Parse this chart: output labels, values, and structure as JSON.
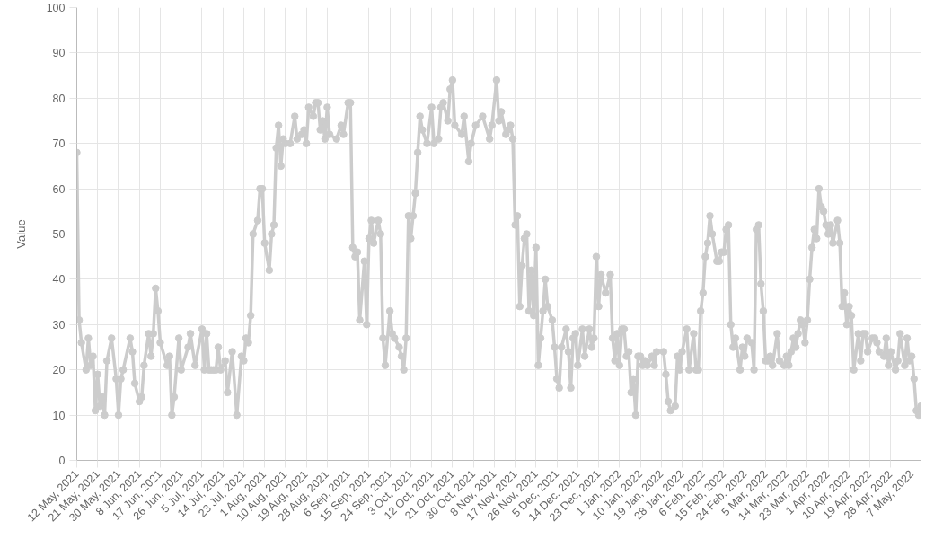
{
  "chart_data": {
    "type": "line",
    "ylabel": "Value",
    "x": [
      "2021-05-12",
      "2021-05-13",
      "2021-05-14",
      "2021-05-16",
      "2021-05-17",
      "2021-05-18",
      "2021-05-19",
      "2021-05-20",
      "2021-05-21",
      "2021-05-22",
      "2021-05-23",
      "2021-05-24",
      "2021-05-25",
      "2021-05-27",
      "2021-05-29",
      "2021-05-30",
      "2021-05-31",
      "2021-06-01",
      "2021-06-04",
      "2021-06-05",
      "2021-06-06",
      "2021-06-08",
      "2021-06-09",
      "2021-06-10",
      "2021-06-12",
      "2021-06-13",
      "2021-06-14",
      "2021-06-15",
      "2021-06-16",
      "2021-06-17",
      "2021-06-20",
      "2021-06-21",
      "2021-06-22",
      "2021-06-23",
      "2021-06-25",
      "2021-06-26",
      "2021-06-29",
      "2021-06-30",
      "2021-07-02",
      "2021-07-05",
      "2021-07-06",
      "2021-07-07",
      "2021-07-08",
      "2021-07-09",
      "2021-07-10",
      "2021-07-11",
      "2021-07-12",
      "2021-07-13",
      "2021-07-15",
      "2021-07-16",
      "2021-07-18",
      "2021-07-20",
      "2021-07-22",
      "2021-07-23",
      "2021-07-24",
      "2021-07-25",
      "2021-07-26",
      "2021-07-27",
      "2021-07-29",
      "2021-07-30",
      "2021-07-31",
      "2021-08-01",
      "2021-08-03",
      "2021-08-04",
      "2021-08-05",
      "2021-08-06",
      "2021-08-07",
      "2021-08-08",
      "2021-08-09",
      "2021-08-10",
      "2021-08-12",
      "2021-08-14",
      "2021-08-15",
      "2021-08-17",
      "2021-08-18",
      "2021-08-19",
      "2021-08-20",
      "2021-08-22",
      "2021-08-23",
      "2021-08-24",
      "2021-08-25",
      "2021-08-26",
      "2021-08-27",
      "2021-08-28",
      "2021-08-29",
      "2021-09-01",
      "2021-09-03",
      "2021-09-04",
      "2021-09-06",
      "2021-09-07",
      "2021-09-08",
      "2021-09-09",
      "2021-09-10",
      "2021-09-11",
      "2021-09-13",
      "2021-09-14",
      "2021-09-15",
      "2021-09-16",
      "2021-09-17",
      "2021-09-19",
      "2021-09-20",
      "2021-09-21",
      "2021-09-22",
      "2021-09-24",
      "2021-09-25",
      "2021-09-26",
      "2021-09-28",
      "2021-09-29",
      "2021-09-30",
      "2021-10-01",
      "2021-10-02",
      "2021-10-03",
      "2021-10-04",
      "2021-10-05",
      "2021-10-06",
      "2021-10-07",
      "2021-10-08",
      "2021-10-10",
      "2021-10-12",
      "2021-10-13",
      "2021-10-15",
      "2021-10-16",
      "2021-10-17",
      "2021-10-19",
      "2021-10-20",
      "2021-10-21",
      "2021-10-22",
      "2021-10-25",
      "2021-10-26",
      "2021-10-28",
      "2021-10-29",
      "2021-10-31",
      "2021-11-03",
      "2021-11-06",
      "2021-11-07",
      "2021-11-09",
      "2021-11-10",
      "2021-11-11",
      "2021-11-13",
      "2021-11-14",
      "2021-11-15",
      "2021-11-16",
      "2021-11-17",
      "2021-11-18",
      "2021-11-19",
      "2021-11-20",
      "2021-11-21",
      "2021-11-22",
      "2021-11-23",
      "2021-11-24",
      "2021-11-25",
      "2021-11-26",
      "2021-11-27",
      "2021-11-28",
      "2021-11-29",
      "2021-11-30",
      "2021-12-01",
      "2021-12-03",
      "2021-12-04",
      "2021-12-05",
      "2021-12-06",
      "2021-12-07",
      "2021-12-09",
      "2021-12-10",
      "2021-12-11",
      "2021-12-12",
      "2021-12-13",
      "2021-12-14",
      "2021-12-16",
      "2021-12-17",
      "2021-12-19",
      "2021-12-20",
      "2021-12-21",
      "2021-12-22",
      "2021-12-23",
      "2021-12-24",
      "2021-12-26",
      "2021-12-28",
      "2021-12-29",
      "2021-12-30",
      "2021-12-31",
      "2022-01-01",
      "2022-01-02",
      "2022-01-03",
      "2022-01-04",
      "2022-01-05",
      "2022-01-06",
      "2022-01-07",
      "2022-01-08",
      "2022-01-09",
      "2022-01-10",
      "2022-01-11",
      "2022-01-12",
      "2022-01-13",
      "2022-01-15",
      "2022-01-16",
      "2022-01-17",
      "2022-01-20",
      "2022-01-21",
      "2022-01-22",
      "2022-01-23",
      "2022-01-25",
      "2022-01-26",
      "2022-01-27",
      "2022-01-28",
      "2022-01-30",
      "2022-01-31",
      "2022-02-02",
      "2022-02-03",
      "2022-02-04",
      "2022-02-05",
      "2022-02-06",
      "2022-02-07",
      "2022-02-08",
      "2022-02-09",
      "2022-02-10",
      "2022-02-12",
      "2022-02-13",
      "2022-02-14",
      "2022-02-15",
      "2022-02-16",
      "2022-02-17",
      "2022-02-18",
      "2022-02-19",
      "2022-02-20",
      "2022-02-22",
      "2022-02-23",
      "2022-02-24",
      "2022-02-25",
      "2022-02-27",
      "2022-02-28",
      "2022-03-01",
      "2022-03-02",
      "2022-03-03",
      "2022-03-04",
      "2022-03-05",
      "2022-03-06",
      "2022-03-07",
      "2022-03-08",
      "2022-03-10",
      "2022-03-11",
      "2022-03-13",
      "2022-03-14",
      "2022-03-15",
      "2022-03-16",
      "2022-03-17",
      "2022-03-18",
      "2022-03-19",
      "2022-03-20",
      "2022-03-21",
      "2022-03-22",
      "2022-03-23",
      "2022-03-24",
      "2022-03-25",
      "2022-03-26",
      "2022-03-27",
      "2022-03-28",
      "2022-03-29",
      "2022-03-30",
      "2022-03-31",
      "2022-04-01",
      "2022-04-02",
      "2022-04-03",
      "2022-04-05",
      "2022-04-06",
      "2022-04-07",
      "2022-04-08",
      "2022-04-09",
      "2022-04-10",
      "2022-04-11",
      "2022-04-12",
      "2022-04-14",
      "2022-04-15",
      "2022-04-16",
      "2022-04-17",
      "2022-04-18",
      "2022-04-20",
      "2022-04-21",
      "2022-04-22",
      "2022-04-23",
      "2022-04-25",
      "2022-04-26",
      "2022-04-27",
      "2022-04-28",
      "2022-04-30",
      "2022-05-01",
      "2022-05-02",
      "2022-05-04",
      "2022-05-05",
      "2022-05-06",
      "2022-05-07",
      "2022-05-08",
      "2022-05-09",
      "2022-05-10",
      "2022-05-11"
    ],
    "series": [
      {
        "color": "#cccccc",
        "values": [
          68,
          31,
          26,
          20,
          27,
          21,
          23,
          11,
          19,
          12,
          14,
          10,
          22,
          27,
          18,
          10,
          18,
          20,
          27,
          24,
          17,
          13,
          14,
          21,
          28,
          23,
          28,
          38,
          33,
          26,
          21,
          23,
          10,
          14,
          27,
          20,
          25,
          28,
          21,
          29,
          20,
          28,
          20,
          20,
          20,
          20,
          25,
          20,
          22,
          15,
          24,
          10,
          23,
          22,
          27,
          26,
          32,
          50,
          53,
          60,
          60,
          48,
          42,
          50,
          52,
          69,
          74,
          65,
          71,
          70,
          70,
          76,
          71,
          72,
          73,
          70,
          78,
          76,
          79,
          79,
          73,
          75,
          71,
          78,
          72,
          71,
          74,
          72,
          79,
          79,
          47,
          45,
          46,
          31,
          44,
          30,
          49,
          53,
          48,
          53,
          50,
          27,
          21,
          33,
          28,
          27,
          25,
          23,
          20,
          27,
          54,
          49,
          54,
          59,
          68,
          76,
          73,
          70,
          78,
          70,
          71,
          78,
          79,
          75,
          82,
          84,
          74,
          72,
          76,
          66,
          70,
          74,
          76,
          71,
          74,
          84,
          75,
          77,
          72,
          73,
          74,
          71,
          52,
          54,
          34,
          43,
          49,
          50,
          33,
          42,
          32,
          47,
          21,
          27,
          33,
          40,
          34,
          31,
          25,
          18,
          16,
          25,
          29,
          24,
          16,
          27,
          28,
          21,
          29,
          23,
          29,
          25,
          27,
          45,
          34,
          41,
          37,
          41,
          27,
          22,
          28,
          21,
          29,
          29,
          23,
          24,
          15,
          18,
          10,
          23,
          23,
          21,
          22,
          21,
          23,
          21,
          24,
          24,
          19,
          13,
          11,
          12,
          23,
          20,
          24,
          29,
          20,
          28,
          20,
          20,
          33,
          37,
          45,
          48,
          54,
          50,
          44,
          44,
          46,
          46,
          51,
          52,
          30,
          25,
          27,
          20,
          25,
          23,
          27,
          26,
          20,
          51,
          52,
          39,
          33,
          22,
          22,
          23,
          21,
          28,
          22,
          21,
          23,
          21,
          24,
          27,
          25,
          28,
          31,
          30,
          26,
          31,
          40,
          47,
          51,
          49,
          60,
          56,
          55,
          52,
          50,
          52,
          48,
          53,
          48,
          34,
          37,
          30,
          34,
          32,
          20,
          28,
          22,
          28,
          28,
          24,
          27,
          27,
          26,
          24,
          23,
          27,
          21,
          24,
          20,
          22,
          28,
          21,
          27,
          22,
          23,
          18,
          11,
          10,
          12
        ]
      }
    ],
    "xlim": [
      "2021-05-12",
      "2022-05-11"
    ],
    "ylim": [
      0,
      100
    ],
    "xticks": [
      {
        "value": "2021-05-12",
        "label": "12 May, 2021"
      },
      {
        "value": "2021-05-21",
        "label": "21 May, 2021"
      },
      {
        "value": "2021-05-30",
        "label": "30 May, 2021"
      },
      {
        "value": "2021-06-08",
        "label": "8 Jun, 2021"
      },
      {
        "value": "2021-06-17",
        "label": "17 Jun, 2021"
      },
      {
        "value": "2021-06-26",
        "label": "26 Jun, 2021"
      },
      {
        "value": "2021-07-05",
        "label": "5 Jul, 2021"
      },
      {
        "value": "2021-07-14",
        "label": "14 Jul, 2021"
      },
      {
        "value": "2021-07-23",
        "label": "23 Jul, 2021"
      },
      {
        "value": "2021-08-01",
        "label": "1 Aug, 2021"
      },
      {
        "value": "2021-08-10",
        "label": "10 Aug, 2021"
      },
      {
        "value": "2021-08-19",
        "label": "19 Aug, 2021"
      },
      {
        "value": "2021-08-28",
        "label": "28 Aug, 2021"
      },
      {
        "value": "2021-09-06",
        "label": "6 Sep, 2021"
      },
      {
        "value": "2021-09-15",
        "label": "15 Sep, 2021"
      },
      {
        "value": "2021-09-24",
        "label": "24 Sep, 2021"
      },
      {
        "value": "2021-10-03",
        "label": "3 Oct, 2021"
      },
      {
        "value": "2021-10-12",
        "label": "12 Oct, 2021"
      },
      {
        "value": "2021-10-21",
        "label": "21 Oct, 2021"
      },
      {
        "value": "2021-10-30",
        "label": "30 Oct, 2021"
      },
      {
        "value": "2021-11-08",
        "label": "8 Nov, 2021"
      },
      {
        "value": "2021-11-17",
        "label": "17 Nov, 2021"
      },
      {
        "value": "2021-11-26",
        "label": "26 Nov, 2021"
      },
      {
        "value": "2021-12-05",
        "label": "5 Dec, 2021"
      },
      {
        "value": "2021-12-14",
        "label": "14 Dec, 2021"
      },
      {
        "value": "2021-12-23",
        "label": "23 Dec, 2021"
      },
      {
        "value": "2022-01-01",
        "label": "1 Jan, 2022"
      },
      {
        "value": "2022-01-10",
        "label": "10 Jan, 2022"
      },
      {
        "value": "2022-01-19",
        "label": "19 Jan, 2022"
      },
      {
        "value": "2022-01-28",
        "label": "28 Jan, 2022"
      },
      {
        "value": "2022-02-06",
        "label": "6 Feb, 2022"
      },
      {
        "value": "2022-02-15",
        "label": "15 Feb, 2022"
      },
      {
        "value": "2022-02-24",
        "label": "24 Feb, 2022"
      },
      {
        "value": "2022-03-05",
        "label": "5 Mar, 2022"
      },
      {
        "value": "2022-03-14",
        "label": "14 Mar, 2022"
      },
      {
        "value": "2022-03-23",
        "label": "23 Mar, 2022"
      },
      {
        "value": "2022-04-01",
        "label": "1 Apr, 2022"
      },
      {
        "value": "2022-04-10",
        "label": "10 Apr, 2022"
      },
      {
        "value": "2022-04-19",
        "label": "19 Apr, 2022"
      },
      {
        "value": "2022-04-28",
        "label": "28 Apr, 2022"
      },
      {
        "value": "2022-05-07",
        "label": "7 May, 2022"
      }
    ],
    "yticks": [
      0,
      10,
      20,
      30,
      40,
      50,
      60,
      70,
      80,
      90,
      100
    ],
    "grid": true,
    "marker": "circle",
    "line_style": "solid"
  }
}
